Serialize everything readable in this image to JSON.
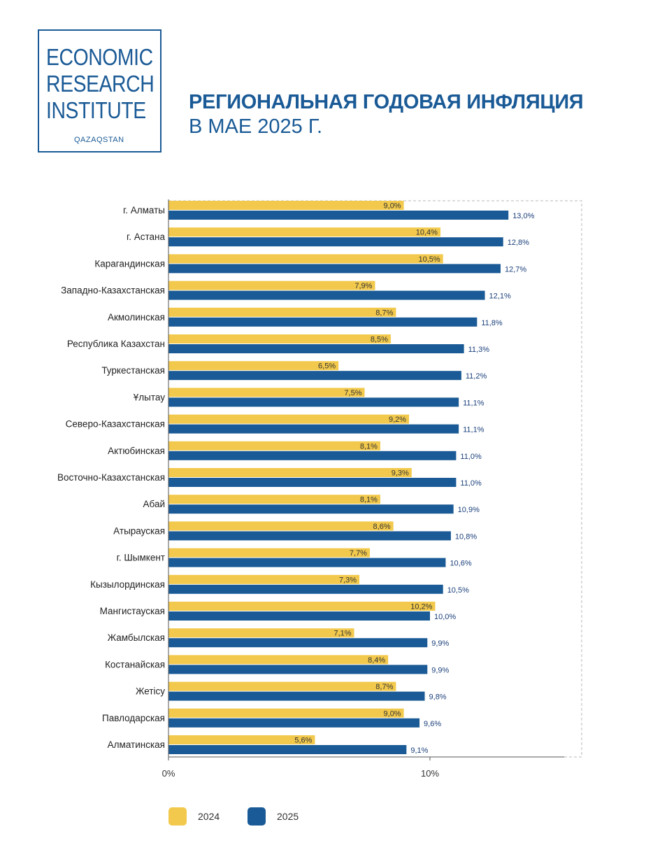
{
  "logo": {
    "lines": [
      "ECONOMIC",
      "RESEARCH",
      "INSTITUTE"
    ],
    "sub": "QAZAQSTAN"
  },
  "header": {
    "title_line1": "РЕГИОНАЛЬНАЯ ГОДОВАЯ ИНФЛЯЦИЯ",
    "title_line2": "В МАЕ 2025 Г."
  },
  "colors": {
    "series_2024": "#f2c94c",
    "series_2025": "#1a5a96",
    "text": "#333333",
    "value_2025": "#1a3f7a"
  },
  "chart_data": {
    "type": "bar",
    "orientation": "horizontal",
    "categories": [
      "г. Алматы",
      "г. Астана",
      "Карагандинская",
      "Западно-Казахстанская",
      "Акмолинская",
      "Республика Казахстан",
      "Туркестанская",
      "Ұлытау",
      "Северо-Казахстанская",
      "Актюбинская",
      "Восточно-Казахстанская",
      "Абай",
      "Атырауская",
      "г. Шымкент",
      "Кызылординская",
      "Мангистауская",
      "Жамбылская",
      "Костанайская",
      "Жетісу",
      "Павлодарская",
      "Алматинская"
    ],
    "series": [
      {
        "name": "2024",
        "values": [
          9.0,
          10.4,
          10.5,
          7.9,
          8.7,
          8.5,
          6.5,
          7.5,
          9.2,
          8.1,
          9.3,
          8.1,
          8.6,
          7.7,
          7.3,
          10.2,
          7.1,
          8.4,
          8.7,
          9.0,
          5.6
        ],
        "labels": [
          "9,0%",
          "10,4%",
          "10,5%",
          "7,9%",
          "8,7%",
          "8,5%",
          "6,5%",
          "7,5%",
          "9,2%",
          "8,1%",
          "9,3%",
          "8,1%",
          "8,6%",
          "7,7%",
          "7,3%",
          "10,2%",
          "7,1%",
          "8,4%",
          "8,7%",
          "9,0%",
          "5,6%"
        ]
      },
      {
        "name": "2025",
        "values": [
          13.0,
          12.8,
          12.7,
          12.1,
          11.8,
          11.3,
          11.2,
          11.1,
          11.1,
          11.0,
          11.0,
          10.9,
          10.8,
          10.6,
          10.5,
          10.0,
          9.9,
          9.9,
          9.8,
          9.6,
          9.1
        ],
        "labels": [
          "13,0%",
          "12,8%",
          "12,7%",
          "12,1%",
          "11,8%",
          "11,3%",
          "11,2%",
          "11,1%",
          "11,1%",
          "11,0%",
          "11,0%",
          "10,9%",
          "10,8%",
          "10,6%",
          "10,5%",
          "10,0%",
          "9,9%",
          "9,9%",
          "9,8%",
          "9,6%",
          "9,1%"
        ]
      }
    ],
    "x_ticks": [
      {
        "value": 0,
        "label": "0%"
      },
      {
        "value": 10,
        "label": "10%"
      }
    ],
    "xlim": [
      0,
      15.9
    ],
    "legend": {
      "placement": "bottom",
      "items": [
        "2024",
        "2025"
      ]
    }
  }
}
